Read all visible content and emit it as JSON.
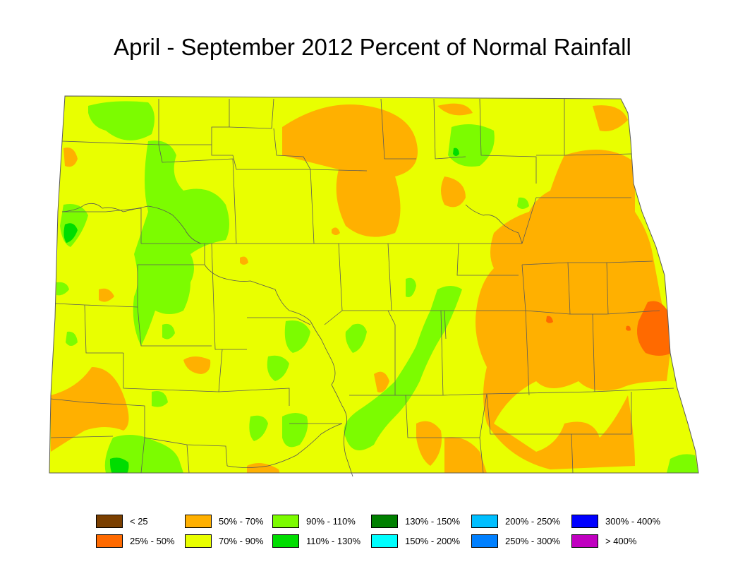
{
  "map": {
    "title": "April - September 2012 Percent of Normal Rainfall"
  },
  "colors": {
    "lt25": "#7a3f00",
    "p25_50": "#ff6a00",
    "p50_70": "#ffb000",
    "p70_90": "#e9ff00",
    "p90_110": "#7cfc00",
    "p110_130": "#00dd00",
    "p130_150": "#008000",
    "p150_200": "#00ffff",
    "p200_250": "#00bfff",
    "p250_300": "#0080ff",
    "p300_400": "#0000ff",
    "gt400": "#c000c0",
    "boundary": "#5a5a5a"
  },
  "legend": {
    "items": [
      {
        "label": "< 25",
        "color": "#7a3f00"
      },
      {
        "label": "25% - 50%",
        "color": "#ff6a00"
      },
      {
        "label": "50% - 70%",
        "color": "#ffb000"
      },
      {
        "label": "70% - 90%",
        "color": "#e9ff00"
      },
      {
        "label": "90% - 110%",
        "color": "#7cfc00"
      },
      {
        "label": "110% - 130%",
        "color": "#00dd00"
      },
      {
        "label": "130% - 150%",
        "color": "#008000"
      },
      {
        "label": "150% - 200%",
        "color": "#00ffff"
      },
      {
        "label": "200% - 250%",
        "color": "#00bfff"
      },
      {
        "label": "250% - 300%",
        "color": "#0080ff"
      },
      {
        "label": "300% - 400%",
        "color": "#0000ff"
      },
      {
        "label": "> 400%",
        "color": "#c000c0"
      }
    ]
  }
}
